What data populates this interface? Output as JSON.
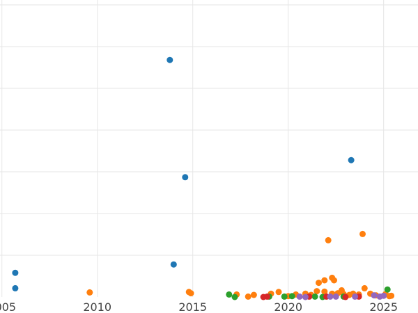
{
  "chart_data": {
    "type": "scatter",
    "title": "",
    "xlabel": "",
    "ylabel": "",
    "xlim": [
      2004.9,
      2026.8
    ],
    "ylim": [
      0,
      70
    ],
    "grid": true,
    "x_ticks": [
      2005,
      2010,
      2015,
      2020,
      2025
    ],
    "x_tick_labels": [
      "2005",
      "2010",
      "2015",
      "2020",
      "2025"
    ],
    "y_gridlines": [
      10,
      20,
      30,
      40,
      50,
      60,
      70
    ],
    "series": [
      {
        "color": "#1f77b4",
        "points": [
          [
            2005.7,
            5.8
          ],
          [
            2005.7,
            2.1
          ],
          [
            2013.8,
            56.8
          ],
          [
            2014.6,
            28.7
          ],
          [
            2014.0,
            7.8
          ],
          [
            2023.3,
            32.8
          ]
        ]
      },
      {
        "color": "#ff7f0e",
        "points": [
          [
            2009.6,
            1.1
          ],
          [
            2014.8,
            1.2
          ],
          [
            2014.9,
            0.9
          ],
          [
            2017.3,
            0.6
          ],
          [
            2017.9,
            0.1
          ],
          [
            2018.2,
            0.5
          ],
          [
            2019.1,
            0.8
          ],
          [
            2019.5,
            1.2
          ],
          [
            2020.0,
            0.2
          ],
          [
            2020.4,
            0.6
          ],
          [
            2020.9,
            0.8
          ],
          [
            2021.2,
            0.5
          ],
          [
            2021.5,
            1.4
          ],
          [
            2021.6,
            3.4
          ],
          [
            2021.9,
            1.3
          ],
          [
            2021.9,
            4.0
          ],
          [
            2022.1,
            13.6
          ],
          [
            2022.3,
            0.8
          ],
          [
            2022.3,
            4.6
          ],
          [
            2022.4,
            4.0
          ],
          [
            2022.6,
            0.9
          ],
          [
            2022.8,
            1.6
          ],
          [
            2022.9,
            0.7
          ],
          [
            2023.2,
            0.5
          ],
          [
            2023.4,
            0.8
          ],
          [
            2023.7,
            0.6
          ],
          [
            2023.9,
            15.1
          ],
          [
            2024.0,
            2.1
          ],
          [
            2024.3,
            0.8
          ],
          [
            2024.6,
            0.4
          ],
          [
            2025.1,
            0.7
          ],
          [
            2025.3,
            0.2
          ],
          [
            2025.4,
            0.3
          ]
        ]
      },
      {
        "color": "#2ca02c",
        "points": [
          [
            2016.9,
            0.6
          ],
          [
            2017.2,
            0.0
          ],
          [
            2019.0,
            0.1
          ],
          [
            2019.8,
            0.1
          ],
          [
            2020.2,
            0.2
          ],
          [
            2021.4,
            0.1
          ],
          [
            2021.8,
            0.0
          ],
          [
            2022.9,
            0.1
          ],
          [
            2025.2,
            1.8
          ]
        ]
      },
      {
        "color": "#d62728",
        "points": [
          [
            2018.7,
            0.0
          ],
          [
            2018.9,
            0.1
          ],
          [
            2021.1,
            0.1
          ],
          [
            2022.0,
            0.1
          ],
          [
            2023.0,
            0.0
          ],
          [
            2023.7,
            0.1
          ]
        ]
      },
      {
        "color": "#9467bd",
        "points": [
          [
            2020.6,
            0.1
          ],
          [
            2020.9,
            0.0
          ],
          [
            2022.2,
            0.1
          ],
          [
            2022.5,
            0.1
          ],
          [
            2023.5,
            0.1
          ],
          [
            2024.5,
            0.4
          ],
          [
            2024.8,
            0.1
          ],
          [
            2025.0,
            0.3
          ]
        ]
      }
    ]
  }
}
